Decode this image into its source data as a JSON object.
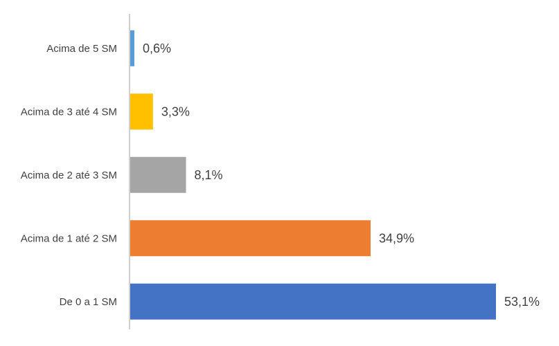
{
  "chart_data": {
    "type": "bar",
    "orientation": "horizontal",
    "categories": [
      "Acima de 5 SM",
      "Acima de 3 até 4 SM",
      "Acima de 2 até 3 SM",
      "Acima de 1 até 2 SM",
      "De 0 a 1 SM"
    ],
    "values": [
      0.6,
      3.3,
      8.1,
      34.9,
      53.1
    ],
    "data_labels": [
      "0,6%",
      "3,3%",
      "8,1%",
      "34,9%",
      "53,1%"
    ],
    "colors": [
      "#5b9bd5",
      "#ffc000",
      "#a5a5a5",
      "#ed7d31",
      "#4472c4"
    ],
    "axis_color": "#bfbfbf",
    "xlim": [
      0,
      53.1
    ],
    "grid": false,
    "legend": "none"
  }
}
